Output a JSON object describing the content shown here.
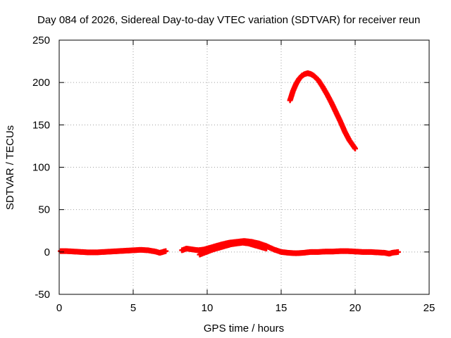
{
  "chart_data": {
    "type": "scatter",
    "title": "Day 084 of 2026, Sidereal Day-to-day VTEC variation (SDTVAR) for receiver reun",
    "xlabel": "GPS time / hours",
    "ylabel": "SDTVAR / TECUs",
    "xlim": [
      0,
      25
    ],
    "ylim": [
      -50,
      250
    ],
    "xticks": [
      0,
      5,
      10,
      15,
      20,
      25
    ],
    "yticks": [
      -50,
      0,
      50,
      100,
      150,
      200,
      250
    ],
    "grid": true,
    "marker": "+",
    "series": [
      {
        "name": "segment-a-near-zero",
        "color": "#ff0000",
        "x": [
          0.1,
          0.5,
          1.0,
          1.5,
          2.0,
          2.5,
          3.0,
          3.5,
          4.0,
          4.5,
          5.0,
          5.5,
          6.0,
          6.5,
          6.8,
          7.0,
          7.2
        ],
        "y": [
          1,
          1,
          0.5,
          0,
          -0.5,
          -0.5,
          0,
          0.5,
          1,
          1.5,
          2,
          2.5,
          2,
          0.5,
          -1,
          0,
          1
        ]
      },
      {
        "name": "segment-b-near-zero",
        "color": "#ff0000",
        "x": [
          8.3,
          8.6,
          9.0,
          9.4,
          9.8,
          10.2,
          10.6,
          11.0,
          11.5,
          12.0,
          12.5,
          13.0,
          13.5,
          14.0,
          14.5,
          15.0,
          15.5,
          16.0,
          16.5,
          17.0,
          17.5,
          18.0,
          18.5,
          19.0,
          19.5,
          20.0,
          20.5,
          21.0,
          21.5,
          22.0,
          22.3,
          22.5,
          22.9
        ],
        "y": [
          2,
          4,
          3,
          2,
          3,
          5,
          7,
          9,
          11,
          12,
          13,
          12,
          10,
          7,
          3,
          0,
          -1,
          -1.5,
          -1,
          0,
          0,
          0.5,
          0.5,
          1,
          1,
          0.5,
          0,
          0,
          -0.5,
          -1,
          -2,
          -1,
          0
        ]
      },
      {
        "name": "segment-c-lower-branch",
        "color": "#ff0000",
        "x": [
          9.5,
          9.8,
          10.1,
          10.4,
          10.8,
          11.2,
          11.6,
          12.0,
          12.4,
          12.8,
          13.2,
          13.6,
          14.0
        ],
        "y": [
          -3,
          -1,
          1,
          3,
          5,
          7,
          9,
          10,
          11,
          10,
          8,
          6,
          4
        ]
      },
      {
        "name": "segment-d-peak",
        "color": "#ff0000",
        "x": [
          15.6,
          15.8,
          16.0,
          16.2,
          16.4,
          16.6,
          16.8,
          17.0,
          17.2,
          17.5,
          17.8,
          18.1,
          18.4,
          18.7,
          19.0,
          19.3,
          19.6,
          20.0
        ],
        "y": [
          179,
          190,
          198,
          204,
          208,
          210,
          211,
          210,
          208,
          203,
          195,
          186,
          176,
          165,
          154,
          142,
          132,
          122
        ]
      }
    ]
  }
}
